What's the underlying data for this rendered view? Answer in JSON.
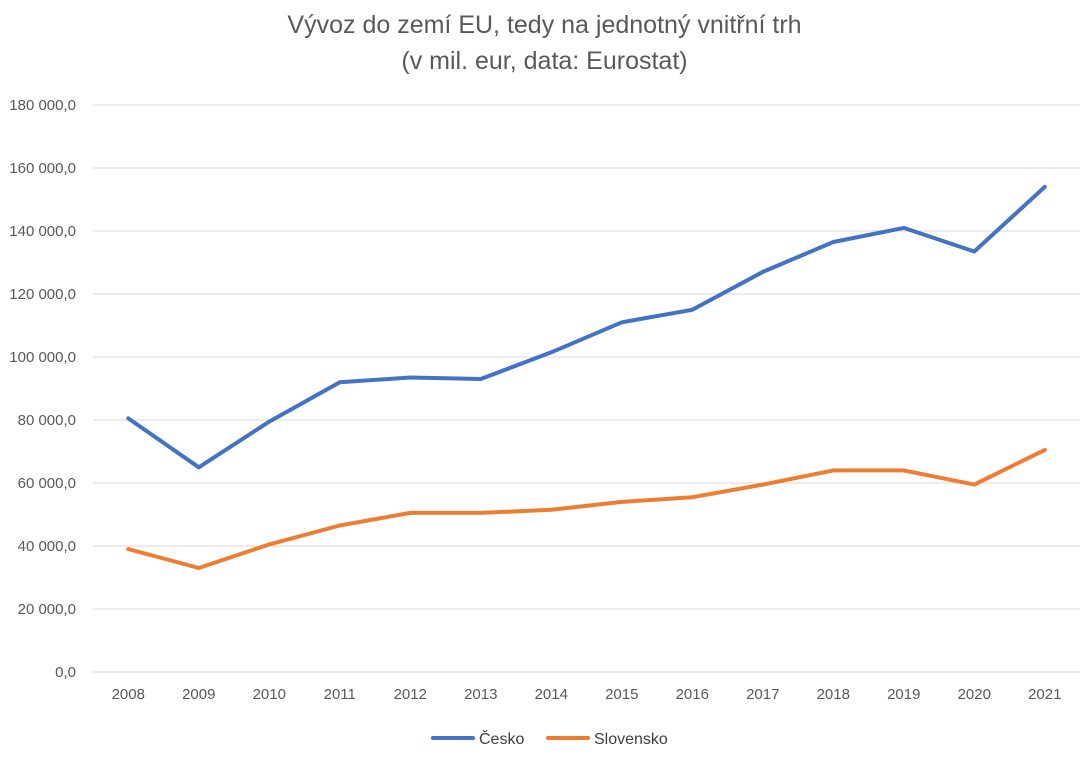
{
  "chart_data": {
    "type": "line",
    "title": "Vývoz do zemí EU, tedy na jednotný vnitřní trh",
    "subtitle": "(v mil. eur, data: Eurostat)",
    "xlabel": "",
    "ylabel": "",
    "categories": [
      "2008",
      "2009",
      "2010",
      "2011",
      "2012",
      "2013",
      "2014",
      "2015",
      "2016",
      "2017",
      "2018",
      "2019",
      "2020",
      "2021"
    ],
    "ylim": [
      0,
      180000
    ],
    "yticks": [
      0,
      20000,
      40000,
      60000,
      80000,
      100000,
      120000,
      140000,
      160000,
      180000
    ],
    "ytick_labels": [
      "0,0",
      "20 000,0",
      "40 000,0",
      "60 000,0",
      "80 000,0",
      "100 000,0",
      "120 000,0",
      "140 000,0",
      "160 000,0",
      "180 000,0"
    ],
    "grid": true,
    "legend_position": "bottom",
    "series": [
      {
        "name": "Česko",
        "color": "#4472C4",
        "values": [
          80500,
          65000,
          79500,
          92000,
          93500,
          93000,
          101500,
          111000,
          115000,
          127000,
          136500,
          141000,
          133500,
          154000
        ]
      },
      {
        "name": "Slovensko",
        "color": "#ED7D31",
        "values": [
          39000,
          33000,
          40500,
          46500,
          50500,
          50500,
          51500,
          54000,
          55500,
          59500,
          64000,
          64000,
          59500,
          70500
        ]
      }
    ]
  }
}
